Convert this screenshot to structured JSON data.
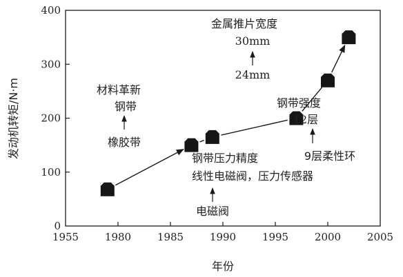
{
  "chart_data": {
    "type": "line",
    "title": "",
    "xlabel": "年份",
    "ylabel": "发动机转矩/N·m",
    "xlim": [
      1975,
      2005
    ],
    "ylim": [
      0,
      400
    ],
    "x_ticks": [
      "1955",
      "1980",
      "1985",
      "1990",
      "1995",
      "2000",
      "2005"
    ],
    "y_ticks": [
      "0",
      "100",
      "200",
      "300",
      "400"
    ],
    "grid": false,
    "series": [
      {
        "x": [
          1979,
          1987,
          1989,
          1997,
          2000,
          2002
        ],
        "values": [
          68,
          150,
          165,
          200,
          270,
          350
        ]
      }
    ],
    "annotations": [
      {
        "id": "material",
        "lines": [
          "材料革新",
          "钢带"
        ]
      },
      {
        "id": "rubber",
        "lines": [
          "橡胶带"
        ]
      },
      {
        "id": "pressure",
        "lines": [
          "钢带压力精度",
          "线性电磁阀，压力传感器"
        ]
      },
      {
        "id": "solenoid",
        "lines": [
          "电磁阀"
        ]
      },
      {
        "id": "strength",
        "lines": [
          "钢带强度",
          "12层"
        ]
      },
      {
        "id": "ring",
        "lines": [
          "9层柔性环"
        ]
      },
      {
        "id": "width",
        "lines": [
          "金属推片宽度",
          "30mm"
        ]
      },
      {
        "id": "width24",
        "lines": [
          "24mm"
        ]
      }
    ],
    "colors": {
      "ink": "#1a1a1a",
      "marker": "#161616"
    }
  }
}
